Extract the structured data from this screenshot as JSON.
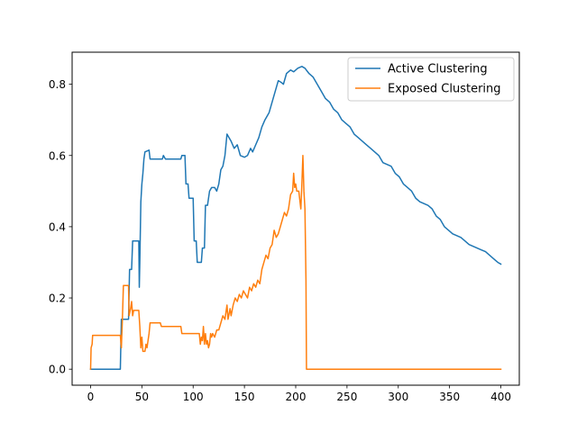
{
  "chart_data": {
    "type": "line",
    "title": "",
    "xlabel": "",
    "ylabel": "",
    "xlim": [
      -18,
      418
    ],
    "ylim": [
      -0.045,
      0.89
    ],
    "xticks": [
      0,
      50,
      100,
      150,
      200,
      250,
      300,
      350,
      400
    ],
    "yticks": [
      0.0,
      0.2,
      0.4,
      0.6,
      0.8
    ],
    "ytick_labels": [
      "0.0",
      "0.2",
      "0.4",
      "0.6",
      "0.8"
    ],
    "grid": false,
    "legend_placement": "top-right",
    "series": [
      {
        "name": "Active Clustering",
        "color": "#1f77b4",
        "points": [
          [
            0,
            0
          ],
          [
            29,
            0
          ],
          [
            30,
            0.14
          ],
          [
            37,
            0.14
          ],
          [
            38,
            0.28
          ],
          [
            40,
            0.28
          ],
          [
            41,
            0.36
          ],
          [
            47,
            0.36
          ],
          [
            47.5,
            0.23
          ],
          [
            48,
            0.3
          ],
          [
            49,
            0.47
          ],
          [
            50,
            0.52
          ],
          [
            51,
            0.55
          ],
          [
            52,
            0.59
          ],
          [
            53,
            0.61
          ],
          [
            57,
            0.615
          ],
          [
            58,
            0.59
          ],
          [
            70,
            0.59
          ],
          [
            71,
            0.6
          ],
          [
            73,
            0.59
          ],
          [
            88,
            0.59
          ],
          [
            89,
            0.6
          ],
          [
            92,
            0.6
          ],
          [
            93,
            0.52
          ],
          [
            95,
            0.52
          ],
          [
            96,
            0.48
          ],
          [
            100,
            0.48
          ],
          [
            101,
            0.36
          ],
          [
            103,
            0.36
          ],
          [
            104,
            0.3
          ],
          [
            108,
            0.3
          ],
          [
            109,
            0.34
          ],
          [
            111,
            0.34
          ],
          [
            112,
            0.46
          ],
          [
            114,
            0.46
          ],
          [
            116,
            0.5
          ],
          [
            118,
            0.51
          ],
          [
            121,
            0.51
          ],
          [
            123,
            0.5
          ],
          [
            125,
            0.52
          ],
          [
            127,
            0.56
          ],
          [
            129,
            0.57
          ],
          [
            131,
            0.6
          ],
          [
            133,
            0.66
          ],
          [
            135,
            0.65
          ],
          [
            137,
            0.64
          ],
          [
            140,
            0.62
          ],
          [
            143,
            0.63
          ],
          [
            146,
            0.6
          ],
          [
            150,
            0.595
          ],
          [
            153,
            0.6
          ],
          [
            156,
            0.62
          ],
          [
            158,
            0.61
          ],
          [
            161,
            0.63
          ],
          [
            164,
            0.65
          ],
          [
            167,
            0.68
          ],
          [
            170,
            0.7
          ],
          [
            174,
            0.72
          ],
          [
            178,
            0.76
          ],
          [
            181,
            0.79
          ],
          [
            183,
            0.81
          ],
          [
            186,
            0.805
          ],
          [
            188,
            0.8
          ],
          [
            191,
            0.83
          ],
          [
            195,
            0.84
          ],
          [
            198,
            0.835
          ],
          [
            202,
            0.845
          ],
          [
            206,
            0.85
          ],
          [
            209,
            0.845
          ],
          [
            213,
            0.83
          ],
          [
            217,
            0.82
          ],
          [
            221,
            0.8
          ],
          [
            225,
            0.78
          ],
          [
            229,
            0.76
          ],
          [
            233,
            0.75
          ],
          [
            237,
            0.73
          ],
          [
            241,
            0.72
          ],
          [
            245,
            0.7
          ],
          [
            249,
            0.69
          ],
          [
            253,
            0.68
          ],
          [
            257,
            0.66
          ],
          [
            261,
            0.65
          ],
          [
            265,
            0.64
          ],
          [
            269,
            0.63
          ],
          [
            273,
            0.62
          ],
          [
            277,
            0.61
          ],
          [
            281,
            0.6
          ],
          [
            285,
            0.58
          ],
          [
            289,
            0.575
          ],
          [
            293,
            0.57
          ],
          [
            297,
            0.55
          ],
          [
            301,
            0.54
          ],
          [
            305,
            0.52
          ],
          [
            309,
            0.51
          ],
          [
            313,
            0.5
          ],
          [
            317,
            0.48
          ],
          [
            321,
            0.47
          ],
          [
            325,
            0.465
          ],
          [
            329,
            0.46
          ],
          [
            333,
            0.45
          ],
          [
            337,
            0.43
          ],
          [
            341,
            0.42
          ],
          [
            345,
            0.4
          ],
          [
            349,
            0.39
          ],
          [
            353,
            0.38
          ],
          [
            357,
            0.375
          ],
          [
            361,
            0.37
          ],
          [
            365,
            0.36
          ],
          [
            369,
            0.35
          ],
          [
            373,
            0.345
          ],
          [
            377,
            0.34
          ],
          [
            381,
            0.335
          ],
          [
            385,
            0.33
          ],
          [
            389,
            0.32
          ],
          [
            393,
            0.31
          ],
          [
            397,
            0.3
          ],
          [
            400,
            0.295
          ]
        ]
      },
      {
        "name": "Exposed Clustering",
        "color": "#ff7f0e",
        "points": [
          [
            0,
            0
          ],
          [
            0.5,
            0.06
          ],
          [
            1.5,
            0.07
          ],
          [
            2,
            0.095
          ],
          [
            29,
            0.095
          ],
          [
            30,
            0.06
          ],
          [
            31,
            0.14
          ],
          [
            32,
            0.235
          ],
          [
            37,
            0.235
          ],
          [
            37.5,
            0.15
          ],
          [
            39,
            0.17
          ],
          [
            40,
            0.19
          ],
          [
            41,
            0.15
          ],
          [
            42,
            0.165
          ],
          [
            47,
            0.165
          ],
          [
            48,
            0.12
          ],
          [
            49,
            0.06
          ],
          [
            50,
            0.09
          ],
          [
            51,
            0.05
          ],
          [
            53,
            0.05
          ],
          [
            54,
            0.07
          ],
          [
            55,
            0.06
          ],
          [
            57,
            0.1
          ],
          [
            58,
            0.13
          ],
          [
            68,
            0.13
          ],
          [
            69,
            0.12
          ],
          [
            88,
            0.12
          ],
          [
            89,
            0.1
          ],
          [
            106,
            0.1
          ],
          [
            107,
            0.07
          ],
          [
            108,
            0.09
          ],
          [
            109,
            0.08
          ],
          [
            110,
            0.12
          ],
          [
            111,
            0.07
          ],
          [
            112,
            0.1
          ],
          [
            113,
            0.07
          ],
          [
            114,
            0.08
          ],
          [
            115,
            0.06
          ],
          [
            116,
            0.07
          ],
          [
            117,
            0.1
          ],
          [
            118,
            0.09
          ],
          [
            119,
            0.1
          ],
          [
            121,
            0.09
          ],
          [
            123,
            0.11
          ],
          [
            125,
            0.11
          ],
          [
            127,
            0.13
          ],
          [
            129,
            0.15
          ],
          [
            131,
            0.14
          ],
          [
            133,
            0.18
          ],
          [
            134,
            0.14
          ],
          [
            136,
            0.17
          ],
          [
            137,
            0.15
          ],
          [
            139,
            0.18
          ],
          [
            141,
            0.2
          ],
          [
            143,
            0.19
          ],
          [
            145,
            0.21
          ],
          [
            147,
            0.2
          ],
          [
            149,
            0.22
          ],
          [
            151,
            0.21
          ],
          [
            153,
            0.2
          ],
          [
            155,
            0.23
          ],
          [
            157,
            0.22
          ],
          [
            159,
            0.24
          ],
          [
            161,
            0.23
          ],
          [
            163,
            0.25
          ],
          [
            165,
            0.24
          ],
          [
            167,
            0.28
          ],
          [
            169,
            0.3
          ],
          [
            171,
            0.32
          ],
          [
            173,
            0.31
          ],
          [
            175,
            0.34
          ],
          [
            177,
            0.35
          ],
          [
            179,
            0.39
          ],
          [
            181,
            0.37
          ],
          [
            183,
            0.38
          ],
          [
            185,
            0.4
          ],
          [
            187,
            0.42
          ],
          [
            189,
            0.44
          ],
          [
            191,
            0.43
          ],
          [
            193,
            0.45
          ],
          [
            195,
            0.49
          ],
          [
            197,
            0.5
          ],
          [
            198,
            0.55
          ],
          [
            199,
            0.51
          ],
          [
            200,
            0.52
          ],
          [
            201,
            0.5
          ],
          [
            203,
            0.5
          ],
          [
            205,
            0.45
          ],
          [
            206,
            0.52
          ],
          [
            207,
            0.6
          ],
          [
            208,
            0.5
          ],
          [
            209,
            0.45
          ],
          [
            210,
            0.25
          ],
          [
            210.5,
            0
          ],
          [
            400,
            0
          ]
        ]
      }
    ]
  }
}
